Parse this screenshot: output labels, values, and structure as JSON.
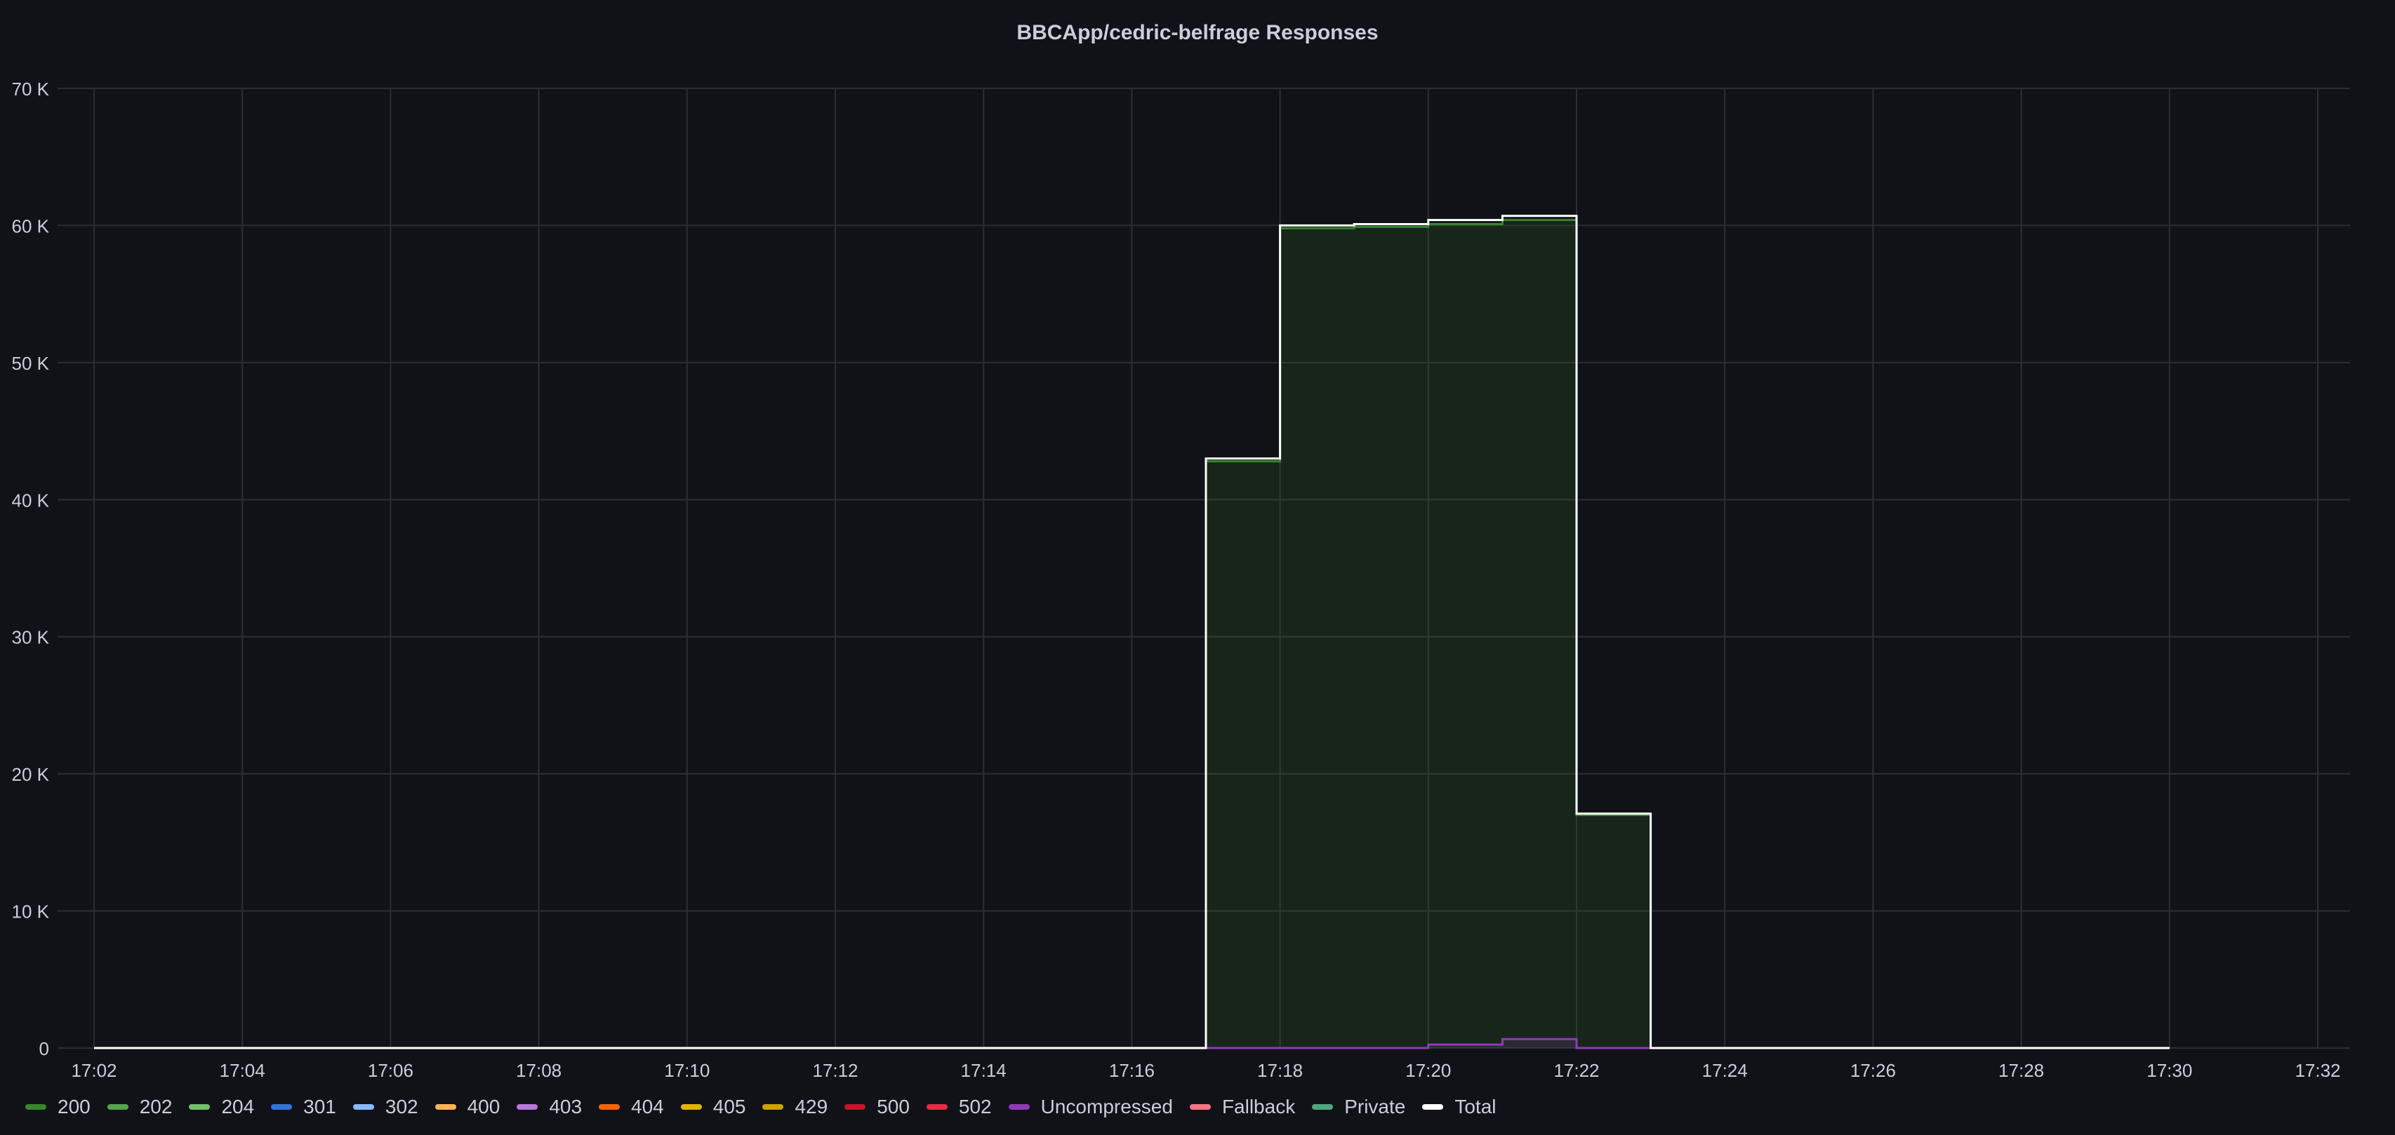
{
  "panel": {
    "title": "BBCApp/cedric-belfrage Responses"
  },
  "chart_data": {
    "type": "area",
    "title": "BBCApp/cedric-belfrage Responses",
    "xlabel": "",
    "ylabel": "",
    "x_ticks": [
      "17:02",
      "17:04",
      "17:06",
      "17:08",
      "17:10",
      "17:12",
      "17:14",
      "17:16",
      "17:18",
      "17:20",
      "17:22",
      "17:24",
      "17:26",
      "17:28",
      "17:30",
      "17:32"
    ],
    "y_ticks": [
      "0",
      "10 K",
      "20 K",
      "30 K",
      "40 K",
      "50 K",
      "60 K",
      "70 K"
    ],
    "xlim": [
      "17:02",
      "17:32"
    ],
    "ylim": [
      0,
      70000
    ],
    "grid": true,
    "interpolation": "step-after",
    "legend_placement": "bottom-left",
    "series": [
      {
        "name": "200",
        "color": "#37872d",
        "points": [
          [
            "17:02",
            0
          ],
          [
            "17:17",
            42800
          ],
          [
            "17:18",
            59800
          ],
          [
            "17:19",
            59900
          ],
          [
            "17:20",
            60100
          ],
          [
            "17:21",
            60400
          ],
          [
            "17:22",
            17000
          ],
          [
            "17:23",
            0
          ],
          [
            "17:30",
            0
          ]
        ]
      },
      {
        "name": "202",
        "color": "#56a64b",
        "points": []
      },
      {
        "name": "204",
        "color": "#73bf69",
        "points": []
      },
      {
        "name": "301",
        "color": "#3274d9",
        "points": []
      },
      {
        "name": "302",
        "color": "#8ab8ff",
        "points": []
      },
      {
        "name": "400",
        "color": "#ffb357",
        "points": []
      },
      {
        "name": "403",
        "color": "#b877d9",
        "points": []
      },
      {
        "name": "404",
        "color": "#fa6400",
        "points": []
      },
      {
        "name": "405",
        "color": "#e0b400",
        "points": []
      },
      {
        "name": "429",
        "color": "#cca300",
        "points": []
      },
      {
        "name": "500",
        "color": "#c4162a",
        "points": []
      },
      {
        "name": "502",
        "color": "#e02f44",
        "points": []
      },
      {
        "name": "Uncompressed",
        "color": "#8f3bb8",
        "points": [
          [
            "17:02",
            0
          ],
          [
            "17:20",
            250
          ],
          [
            "17:21",
            650
          ],
          [
            "17:22",
            0
          ],
          [
            "17:30",
            0
          ]
        ]
      },
      {
        "name": "Fallback",
        "color": "#ff7383",
        "points": []
      },
      {
        "name": "Private",
        "color": "#4fa782",
        "points": []
      },
      {
        "name": "Total",
        "color": "#ffffff",
        "points": [
          [
            "17:02",
            0
          ],
          [
            "17:17",
            43000
          ],
          [
            "17:18",
            60000
          ],
          [
            "17:19",
            60100
          ],
          [
            "17:20",
            60400
          ],
          [
            "17:21",
            60700
          ],
          [
            "17:22",
            17100
          ],
          [
            "17:23",
            0
          ],
          [
            "17:30",
            0
          ]
        ]
      }
    ]
  }
}
